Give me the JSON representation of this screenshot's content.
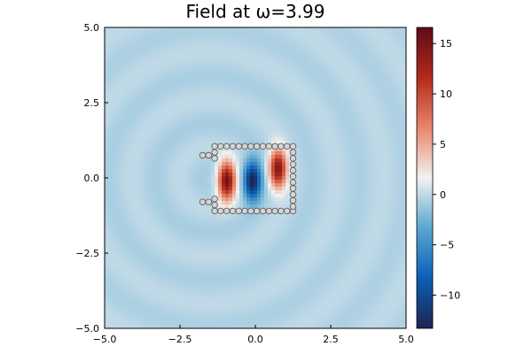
{
  "chart_data": {
    "type": "heatmap",
    "title": "Field at ω=3.99",
    "xlim": [
      -5,
      5
    ],
    "ylim": [
      -5,
      5
    ],
    "xticks": [
      -5,
      -2.5,
      0,
      2.5,
      5
    ],
    "xtick_labels": [
      "−5.0",
      "−2.5",
      "0.0",
      "2.5",
      "5.0"
    ],
    "yticks": [
      -5,
      -2.5,
      0,
      2.5,
      5
    ],
    "ytick_labels": [
      "−5.0",
      "−2.5",
      "0.0",
      "2.5",
      "5.0"
    ],
    "grid": false,
    "colorbar": {
      "range": [
        -13.3,
        16.6
      ],
      "ticks": [
        -10,
        -5,
        0,
        5,
        10,
        15
      ],
      "tick_labels": [
        "−10",
        "−5",
        "0",
        "5",
        "10",
        "15"
      ],
      "colors": [
        "#1e2350",
        "#0b5fb8",
        "#5aa7d0",
        "#f2f2f2",
        "#e8866a",
        "#b22b1b",
        "#5c0b18"
      ]
    },
    "cavity_lobes": [
      {
        "x": -0.95,
        "y": -0.1,
        "value": 16.0
      },
      {
        "x": -0.1,
        "y": -0.1,
        "value": -13.0
      },
      {
        "x": 0.75,
        "y": 0.3,
        "value": 15.0
      }
    ],
    "scatterers": [
      [
        -1.35,
        1.05
      ],
      [
        -1.15,
        1.05
      ],
      [
        -0.95,
        1.05
      ],
      [
        -0.75,
        1.05
      ],
      [
        -0.55,
        1.05
      ],
      [
        -0.35,
        1.05
      ],
      [
        -0.15,
        1.05
      ],
      [
        0.05,
        1.05
      ],
      [
        0.25,
        1.05
      ],
      [
        0.45,
        1.05
      ],
      [
        0.65,
        1.05
      ],
      [
        0.85,
        1.05
      ],
      [
        1.05,
        1.05
      ],
      [
        1.25,
        1.05
      ],
      [
        -1.35,
        -1.1
      ],
      [
        -1.15,
        -1.1
      ],
      [
        -0.95,
        -1.1
      ],
      [
        -0.75,
        -1.1
      ],
      [
        -0.55,
        -1.1
      ],
      [
        -0.35,
        -1.1
      ],
      [
        -0.15,
        -1.1
      ],
      [
        0.05,
        -1.1
      ],
      [
        0.25,
        -1.1
      ],
      [
        0.45,
        -1.1
      ],
      [
        0.65,
        -1.1
      ],
      [
        0.85,
        -1.1
      ],
      [
        1.05,
        -1.1
      ],
      [
        1.25,
        -1.1
      ],
      [
        -1.35,
        0.85
      ],
      [
        -1.35,
        0.65
      ],
      [
        -1.35,
        -0.7
      ],
      [
        -1.35,
        -0.9
      ],
      [
        1.25,
        0.85
      ],
      [
        1.25,
        0.65
      ],
      [
        1.25,
        0.45
      ],
      [
        1.25,
        0.25
      ],
      [
        1.25,
        0.05
      ],
      [
        1.25,
        -0.15
      ],
      [
        1.25,
        -0.35
      ],
      [
        1.25,
        -0.55
      ],
      [
        1.25,
        -0.75
      ],
      [
        1.25,
        -0.95
      ],
      [
        -1.55,
        0.75
      ],
      [
        -1.75,
        0.75
      ],
      [
        -1.55,
        -0.8
      ],
      [
        -1.75,
        -0.8
      ]
    ]
  }
}
